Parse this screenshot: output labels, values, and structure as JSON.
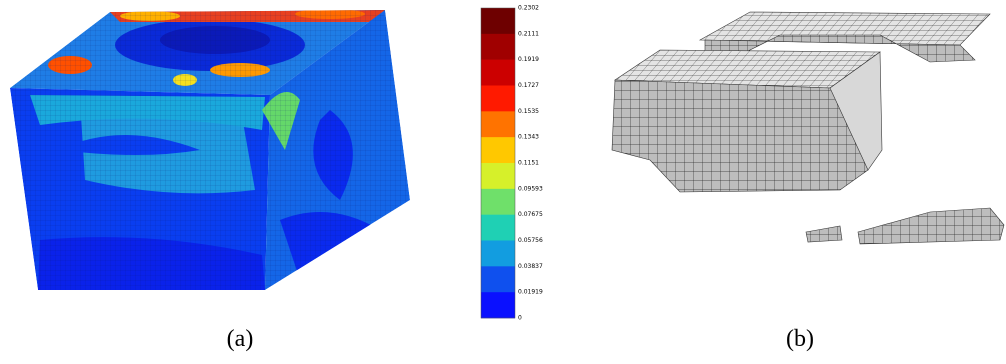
{
  "panels": [
    {
      "caption": "(a)"
    },
    {
      "caption": "(b)"
    }
  ],
  "colorbar": {
    "labels": [
      "0.2302",
      "0.2111",
      "0.1919",
      "0.1727",
      "0.1535",
      "0.1343",
      "0.1151",
      "0.09593",
      "0.07675",
      "0.05756",
      "0.03837",
      "0.01919",
      "0"
    ],
    "colors": [
      "#6e0000",
      "#a00000",
      "#cc0000",
      "#ff1a00",
      "#ff7300",
      "#ffc800",
      "#d6f02a",
      "#6fe06a",
      "#1fd0b4",
      "#129de0",
      "#0f50ee",
      "#0a10ff"
    ]
  }
}
